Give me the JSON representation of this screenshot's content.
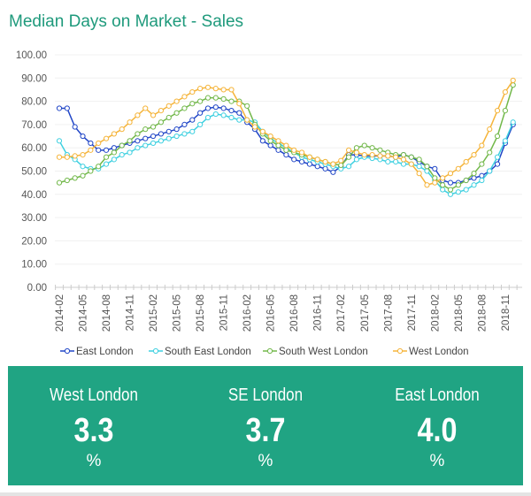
{
  "chart_data": {
    "type": "line",
    "title": "Median Days on Market - Sales",
    "ylim": [
      0,
      100
    ],
    "yticks": [
      "0.00",
      "10.00",
      "20.00",
      "30.00",
      "40.00",
      "50.00",
      "60.00",
      "70.00",
      "80.00",
      "90.00",
      "100.00"
    ],
    "x_start": "2014-02",
    "x_end": "2018-12",
    "xtick_labels": [
      "2014-02",
      "2014-05",
      "2014-08",
      "2014-11",
      "2015-02",
      "2015-05",
      "2015-08",
      "2015-11",
      "2016-02",
      "2016-05",
      "2016-08",
      "2016-11",
      "2017-02",
      "2017-05",
      "2017-08",
      "2017-11",
      "2018-02",
      "2018-05",
      "2018-08",
      "2018-11"
    ],
    "grid": true,
    "legend_position": "bottom",
    "series": [
      {
        "name": "East London",
        "color": "#2146c7",
        "values": [
          77,
          77,
          69,
          65,
          62,
          59,
          59,
          60,
          61,
          62,
          63,
          64,
          65,
          66,
          67,
          68,
          70,
          72,
          75,
          77,
          77.5,
          77,
          76,
          75,
          71,
          68,
          63,
          61,
          59,
          57,
          55,
          54,
          53,
          52,
          51,
          49.5,
          52,
          57,
          57,
          56.5,
          56.5,
          56.5,
          56.5,
          56,
          57,
          56,
          54,
          52,
          51,
          46,
          45,
          45,
          46,
          47,
          48,
          50,
          53,
          62,
          70
        ]
      },
      {
        "name": "South East London",
        "color": "#3fd0e0",
        "values": [
          63,
          57,
          55,
          52,
          51,
          51,
          53,
          55,
          57,
          58,
          60,
          61,
          62,
          63,
          64,
          65,
          66,
          67,
          70,
          73,
          74.5,
          74,
          73,
          72,
          72,
          71,
          67,
          64,
          62,
          60,
          58,
          56,
          55,
          54,
          53,
          52,
          51,
          52,
          55,
          56,
          55.5,
          55,
          54,
          54,
          53,
          53,
          52,
          50,
          46,
          42,
          40,
          41,
          42,
          44,
          46,
          50,
          56,
          63,
          71
        ]
      },
      {
        "name": "South West London",
        "color": "#72b84a",
        "values": [
          45,
          46,
          47,
          48,
          50,
          52,
          56,
          58,
          61,
          63,
          66,
          68,
          69,
          71,
          73,
          75,
          77,
          79,
          80,
          81.5,
          81.5,
          81,
          80,
          80,
          78,
          70,
          66,
          63,
          61,
          59,
          58,
          57,
          56,
          55,
          54,
          53,
          52.5,
          56,
          60,
          61,
          60,
          59,
          58,
          57,
          57,
          56,
          55,
          52,
          47,
          44,
          42,
          44,
          46,
          49,
          53,
          58,
          65,
          76,
          87
        ]
      },
      {
        "name": "West London",
        "color": "#f5b43a",
        "values": [
          56,
          56,
          56.5,
          57,
          59,
          62,
          64,
          66,
          68,
          71,
          74,
          77,
          74,
          76,
          78,
          80,
          82,
          84,
          85.5,
          86,
          85.5,
          85,
          85,
          79,
          72,
          69,
          67,
          65,
          63,
          61,
          59,
          58,
          56,
          55,
          54,
          53,
          54.5,
          59,
          58,
          57,
          57,
          56.5,
          56.5,
          56,
          55,
          53,
          49,
          44,
          45,
          47,
          49,
          51,
          54,
          57,
          61,
          68,
          76,
          84,
          89
        ]
      }
    ]
  },
  "panel": {
    "color": "#20a483",
    "stats": [
      {
        "label": "West London",
        "value": "3.3",
        "unit": "%"
      },
      {
        "label": "SE London",
        "value": "3.7",
        "unit": "%"
      },
      {
        "label": "East London",
        "value": "4.0",
        "unit": "%"
      }
    ]
  }
}
